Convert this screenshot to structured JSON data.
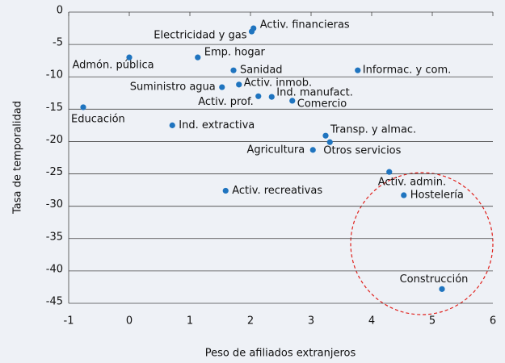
{
  "chart_data": {
    "type": "scatter",
    "xlabel": "Peso de afiliados extranjeros",
    "ylabel": "Tasa de temporalidad",
    "labels": [
      "Activ. financieras",
      "Electricidad y gas",
      "Emp. hogar",
      "Admón. pública",
      "Sanidad",
      "Informac. y com.",
      "Suministro agua",
      "Activ. inmob.",
      "Activ. prof.",
      "Ind. manufact.",
      "Comercio",
      "Educación",
      "Ind. extractiva",
      "Transp. y almac.",
      "Otros servicios",
      "Agricultura",
      "Activ. admin.",
      "Hostelería",
      "Activ. recreativas",
      "Construcción"
    ],
    "series": [
      {
        "color": "#1f74bf",
        "x": [
          2.05,
          2.02,
          1.13,
          0.0,
          1.72,
          3.77,
          1.53,
          1.81,
          2.13,
          2.35,
          2.69,
          -0.76,
          0.71,
          3.24,
          3.31,
          3.03,
          4.29,
          4.53,
          1.59,
          5.16
        ],
        "values": [
          -2.5,
          -3.0,
          -7.0,
          -7.0,
          -9.0,
          -9.0,
          -11.6,
          -11.2,
          -13.0,
          -13.1,
          -13.7,
          -14.7,
          -17.5,
          -19.1,
          -20.1,
          -21.3,
          -24.7,
          -28.3,
          -27.6,
          -42.8
        ]
      }
    ],
    "xlim": [
      -1,
      6
    ],
    "xticks": [
      -1,
      0,
      1,
      2,
      3,
      4,
      5,
      6
    ],
    "ylim": [
      -45,
      0
    ],
    "yticks": [
      0,
      -5,
      -10,
      -15,
      -20,
      -25,
      -30,
      -35,
      -40,
      -45
    ],
    "grid": true
  }
}
